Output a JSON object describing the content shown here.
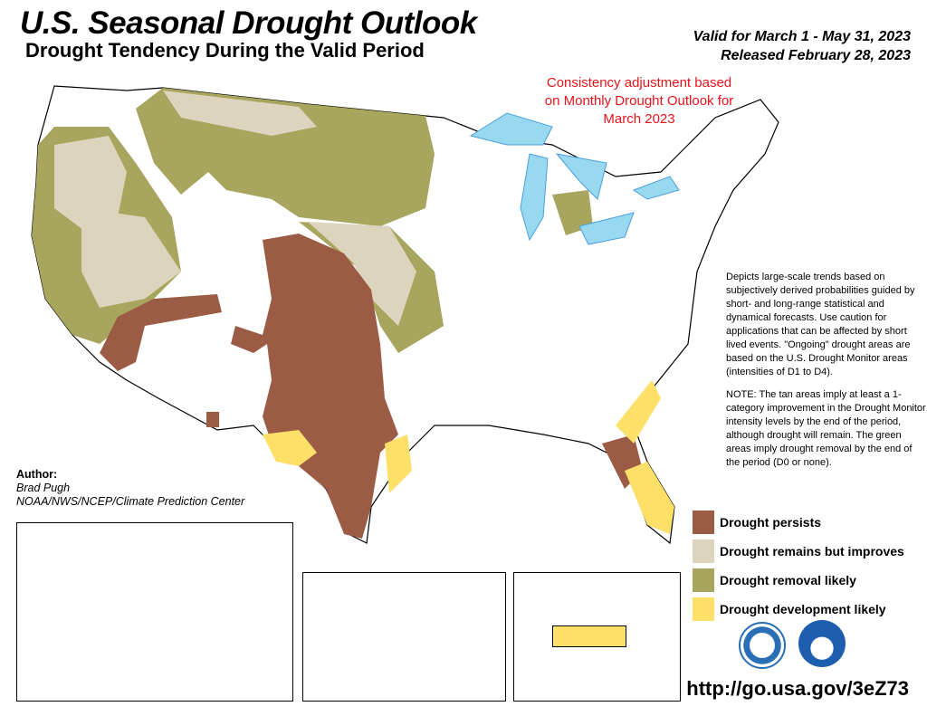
{
  "header": {
    "title": "U.S. Seasonal Drought Outlook",
    "subtitle": "Drought Tendency During the Valid Period",
    "valid": "Valid for March 1 - May 31, 2023",
    "released": "Released February 28, 2023"
  },
  "note_red": "Consistency adjustment based on Monthly Drought Outlook for March 2023",
  "description": [
    "Depicts large-scale trends based on subjectively derived probabilities guided by short- and long-range statistical and dynamical forecasts. Use caution for applications that can be affected by short lived events. \"Ongoing\" drought areas are based on the U.S. Drought Monitor areas (intensities of D1 to D4).",
    "NOTE: The tan areas imply at least a 1-category improvement in the Drought Monitor intensity levels by the end of the period, although drought will remain. The green areas imply drought removal by the end of the period (D0 or none)."
  ],
  "author": {
    "label": "Author:",
    "name": "Brad Pugh",
    "org": "NOAA/NWS/NCEP/Climate Prediction Center"
  },
  "legend": [
    {
      "label": "Drought persists",
      "color": "#9c5b45"
    },
    {
      "label": "Drought remains but improves",
      "color": "#ddd4bd"
    },
    {
      "label": "Drought removal likely",
      "color": "#a8a55f"
    },
    {
      "label": "Drought development likely",
      "color": "#fde068"
    }
  ],
  "colors": {
    "water": "#99d9f0",
    "rivers": "#4a9fe0"
  },
  "logos": [
    "doc-seal-icon",
    "noaa-logo-icon"
  ],
  "url": "http://go.usa.gov/3eZ73"
}
